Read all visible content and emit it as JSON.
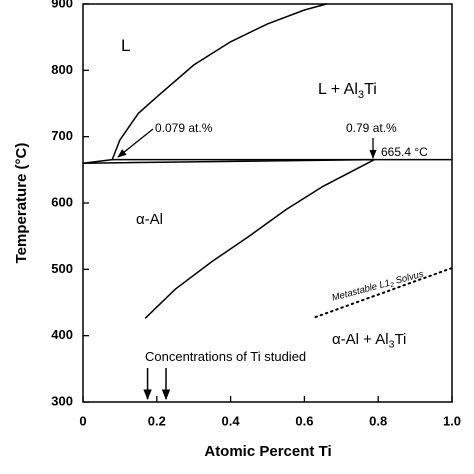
{
  "chart_data": {
    "type": "line",
    "xlabel": "Atomic Percent Ti",
    "ylabel": "Temperature (°C)",
    "xlim": [
      0,
      1
    ],
    "ylim": [
      300,
      900
    ],
    "xticks": [
      0,
      0.2,
      0.4,
      0.6,
      0.8,
      {
        "value": 1,
        "label": "1.0"
      }
    ],
    "yticks": [
      300,
      400,
      500,
      600,
      700,
      800,
      900
    ],
    "series": [
      {
        "color": "#000000",
        "style": "solid",
        "x": [
          0.079,
          0.1,
          0.15,
          0.2,
          0.3,
          0.4,
          0.5,
          0.6,
          0.66
        ],
        "values": [
          665.4,
          695,
          735,
          760,
          808,
          843,
          870,
          891,
          900
        ]
      },
      {
        "color": "#000000",
        "style": "solid",
        "x": [
          0,
          0.079
        ],
        "values": [
          660,
          665.4
        ]
      },
      {
        "color": "#000000",
        "style": "solid",
        "x": [
          0,
          0.79
        ],
        "values": [
          660,
          665.4
        ]
      },
      {
        "color": "#000000",
        "style": "solid",
        "x": [
          0.079,
          1
        ],
        "values": [
          665.4,
          665.4
        ]
      },
      {
        "color": "#000000",
        "style": "solid",
        "x": [
          0.17,
          0.25,
          0.35,
          0.45,
          0.55,
          0.65,
          0.79
        ],
        "values": [
          427,
          470,
          512,
          550,
          590,
          625,
          665.4
        ]
      },
      {
        "color": "#000000",
        "style": "dotted",
        "x": [
          0.63,
          1
        ],
        "values": [
          428,
          502
        ]
      }
    ],
    "studied_x": [
      0.175,
      0.225
    ],
    "annotations": [
      [
        "L"
      ],
      [
        "L + Al",
        "3",
        "Ti"
      ],
      [
        "α-Al"
      ],
      [
        "α-Al + Al",
        "3",
        "Ti"
      ],
      [
        "0.079 at.%"
      ],
      [
        "0.79 at.%"
      ],
      [
        "665.4 °C"
      ],
      [
        "Metastable L1",
        "2",
        " Solvus"
      ],
      [
        "Concentrations of Ti studied"
      ]
    ]
  }
}
